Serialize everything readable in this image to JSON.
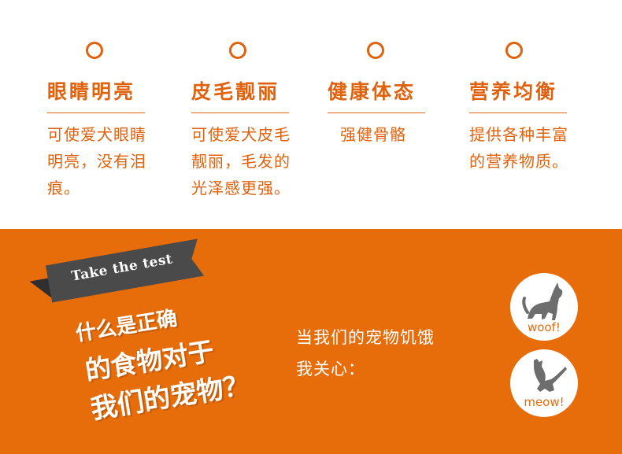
{
  "features": [
    {
      "title": "眼睛明亮",
      "desc_lines": [
        "可使爱犬眼睛",
        "明亮，没有泪",
        "痕。"
      ]
    },
    {
      "title": "皮毛靓丽",
      "desc_lines": [
        "可使爱犬皮毛",
        "靓丽，毛发的",
        "光泽感更强。"
      ]
    },
    {
      "title": "健康体态",
      "desc_lines": [
        "强健骨骼"
      ]
    },
    {
      "title": "营养均衡",
      "desc_lines": [
        "提供各种丰富",
        "的营养物质。"
      ]
    }
  ],
  "banner": {
    "label": "Take the test"
  },
  "question": {
    "line1": "什么是正确",
    "line2": "的食物对于",
    "line3": "我们的宠物？"
  },
  "answer": {
    "line1": "当我们的宠物饥饿",
    "line2": "我关心："
  },
  "badges": [
    {
      "icon": "dog-icon",
      "label": "woof!"
    },
    {
      "icon": "cat-icon",
      "label": "meow!"
    }
  ],
  "colors": {
    "accent": "#e0620e",
    "band": "#e76c0a",
    "banner": "#4a4a4a"
  }
}
